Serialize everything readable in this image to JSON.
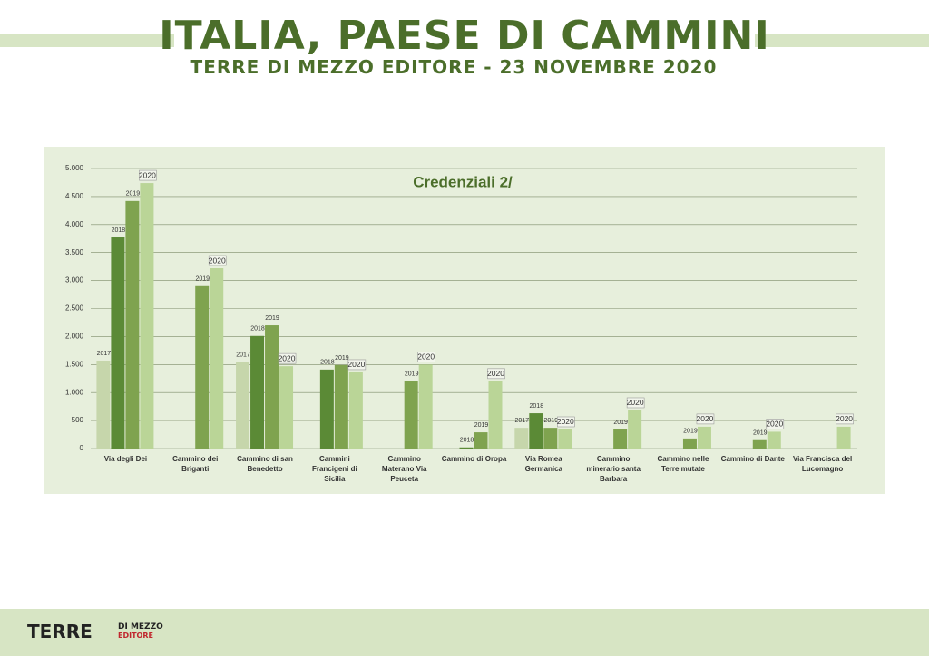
{
  "header": {
    "title": "ITALIA, PAESE DI CAMMINI",
    "subtitle": "TERRE DI MEZZO EDITORE - 23 NOVEMBRE 2020"
  },
  "chart_data": {
    "type": "bar",
    "title": "Credenziali 2/",
    "categories": [
      "Via degli Dei",
      "Cammino dei Briganti",
      "Cammino di san Benedetto",
      "Cammini Francigeni di Sicilia",
      "Cammino Materano Via Peuceta",
      "Cammino di Oropa",
      "Via Romea Germanica",
      "Cammino minerario santa Barbara",
      "Cammino nelle Terre mutate",
      "Cammino di Dante",
      "Via Francisca del Lucomagno"
    ],
    "series": [
      {
        "name": "2017",
        "color": "#c6d6ab",
        "values": [
          1570,
          null,
          1540,
          null,
          null,
          null,
          370,
          null,
          null,
          null,
          null
        ]
      },
      {
        "name": "2018",
        "color": "#5b8a36",
        "values": [
          3770,
          null,
          2010,
          1410,
          null,
          20,
          630,
          null,
          null,
          null,
          null
        ]
      },
      {
        "name": "2019",
        "color": "#7fa34f",
        "values": [
          4420,
          2900,
          2200,
          1490,
          1200,
          290,
          370,
          340,
          180,
          150,
          null
        ]
      },
      {
        "name": "2020",
        "color": "#bad597",
        "values": [
          4740,
          3220,
          1470,
          1360,
          1500,
          1200,
          340,
          680,
          390,
          300,
          390
        ]
      }
    ],
    "ylim": [
      0,
      5000
    ],
    "yticks": [
      0,
      500,
      {
        "value": 1000,
        "label": "1.000"
      },
      {
        "value": 1500,
        "label": "1.500"
      },
      {
        "value": 2000,
        "label": "2.000"
      },
      {
        "value": 2500,
        "label": "2.500"
      },
      {
        "value": 3000,
        "label": "3.000"
      },
      {
        "value": 3500,
        "label": "3.500"
      },
      {
        "value": 4000,
        "label": "4.000"
      },
      {
        "value": 4500,
        "label": "4.500"
      },
      {
        "value": 5000,
        "label": "5.000"
      }
    ],
    "grid": true
  },
  "footer": {
    "logo": "TERRE",
    "logo_small": "DI MEZZO",
    "logo_sub": "EDITORE"
  }
}
